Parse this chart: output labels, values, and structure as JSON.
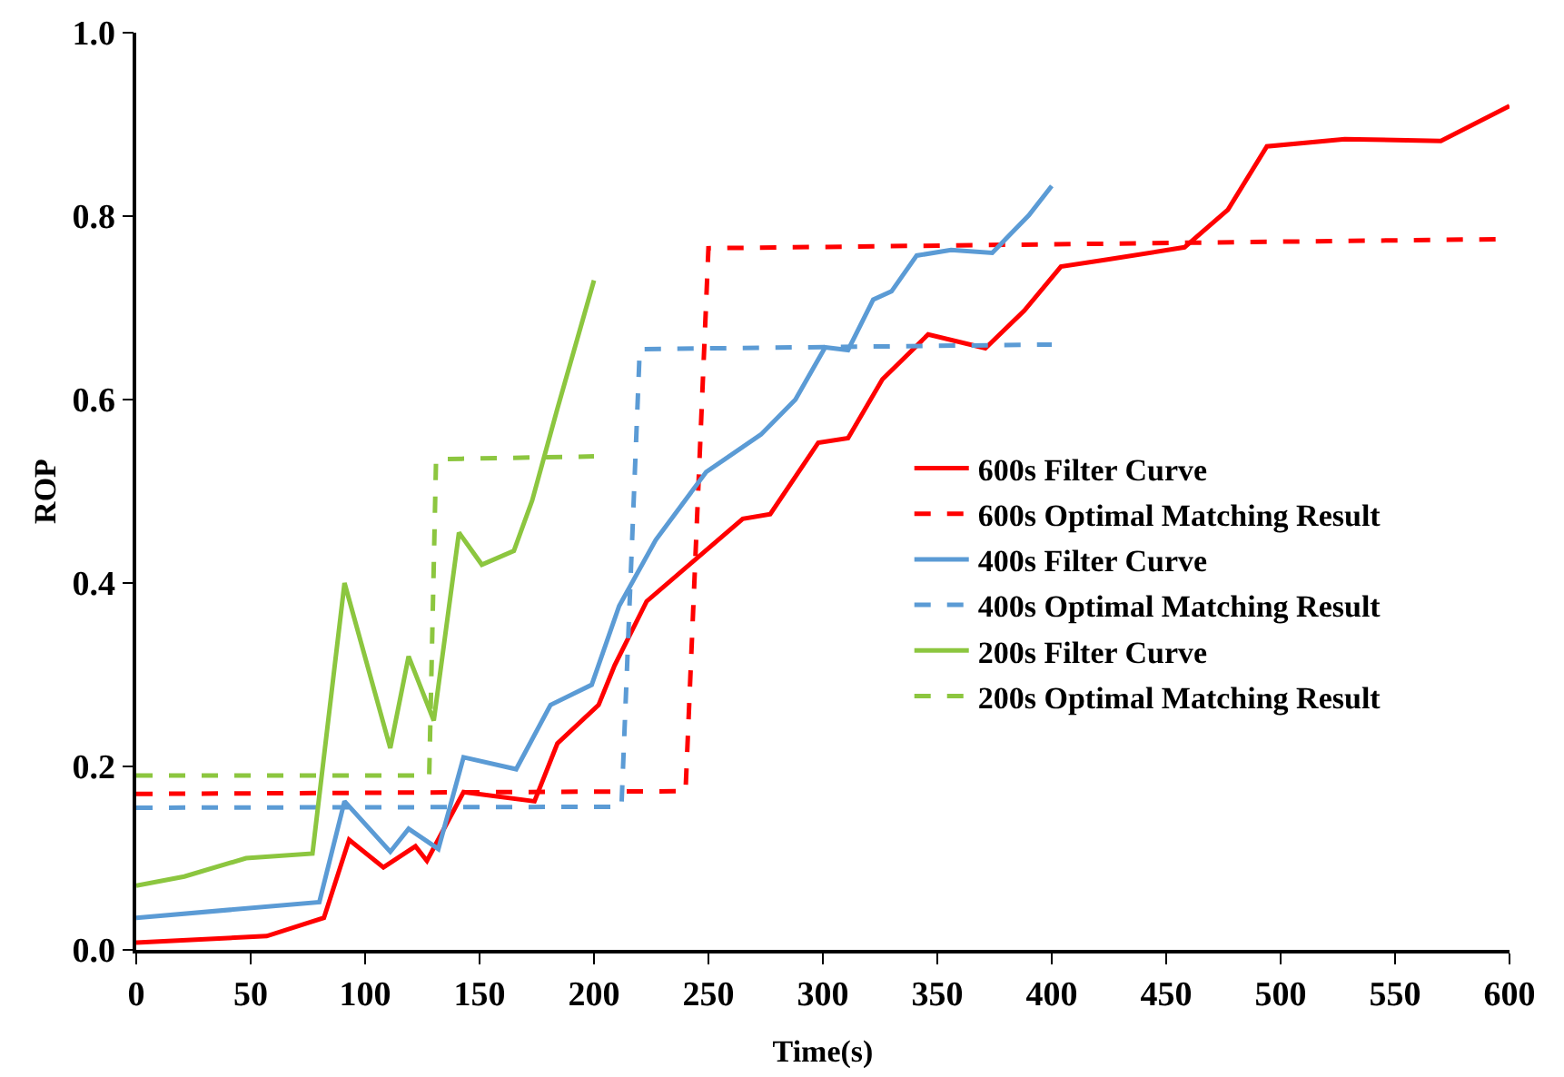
{
  "chart_data": {
    "type": "line",
    "xlabel": "Time(s)",
    "ylabel": "ROP",
    "xlim": [
      0,
      600
    ],
    "xticks": [
      0,
      50,
      100,
      150,
      200,
      250,
      300,
      350,
      400,
      450,
      500,
      550,
      600
    ],
    "ylim": [
      0,
      1
    ],
    "yticks": [
      {
        "value": 0,
        "label": "0.0"
      },
      0.2,
      0.4,
      0.6,
      0.8,
      {
        "value": 1,
        "label": "1.0"
      }
    ],
    "grid": false,
    "legend": "right",
    "marker": "none",
    "series": [
      {
        "name": "600s Filter Curve",
        "color": "#ff0000",
        "line_style": "solid",
        "x": [
          0,
          57,
          82,
          93,
          108,
          122,
          127,
          143,
          174,
          184,
          202,
          209,
          223,
          265,
          277,
          298,
          311,
          326,
          346,
          371,
          388,
          404,
          425,
          458,
          477,
          494,
          528,
          570,
          600
        ],
        "values": [
          0.008,
          0.015,
          0.035,
          0.12,
          0.09,
          0.113,
          0.097,
          0.172,
          0.162,
          0.225,
          0.267,
          0.31,
          0.38,
          0.47,
          0.475,
          0.553,
          0.558,
          0.622,
          0.671,
          0.656,
          0.697,
          0.745,
          0.753,
          0.766,
          0.807,
          0.876,
          0.884,
          0.882,
          0.92
        ]
      },
      {
        "name": "600s Optimal Matching Result",
        "color": "#ff0000",
        "line_style": "dashed",
        "x": [
          0,
          240,
          250,
          600
        ],
        "values": [
          0.17,
          0.173,
          0.765,
          0.775
        ]
      },
      {
        "name": "400s Filter Curve",
        "color": "#5b9bd5",
        "line_style": "solid",
        "x": [
          0,
          80,
          91,
          111,
          119,
          132,
          143,
          166,
          181,
          199,
          211,
          227,
          249,
          273,
          288,
          301,
          311,
          322,
          330,
          341,
          356,
          374,
          390,
          400
        ],
        "values": [
          0.035,
          0.052,
          0.162,
          0.107,
          0.132,
          0.11,
          0.21,
          0.197,
          0.267,
          0.289,
          0.375,
          0.447,
          0.521,
          0.562,
          0.6,
          0.657,
          0.654,
          0.709,
          0.718,
          0.757,
          0.763,
          0.76,
          0.801,
          0.833
        ]
      },
      {
        "name": "400s Optimal Matching Result",
        "color": "#5b9bd5",
        "line_style": "dashed",
        "x": [
          0,
          212,
          220,
          400
        ],
        "values": [
          0.155,
          0.156,
          0.655,
          0.66
        ]
      },
      {
        "name": "200s Filter Curve",
        "color": "#8cc63f",
        "line_style": "solid",
        "x": [
          0,
          21,
          48,
          77,
          91,
          111,
          119,
          130,
          141,
          151,
          165,
          173,
          184,
          200
        ],
        "values": [
          0.07,
          0.08,
          0.1,
          0.105,
          0.4,
          0.22,
          0.32,
          0.25,
          0.455,
          0.42,
          0.435,
          0.49,
          0.59,
          0.73
        ]
      },
      {
        "name": "200s Optimal Matching Result",
        "color": "#8cc63f",
        "line_style": "dashed",
        "x": [
          0,
          128,
          131,
          200
        ],
        "values": [
          0.19,
          0.19,
          0.535,
          0.538
        ]
      }
    ]
  }
}
